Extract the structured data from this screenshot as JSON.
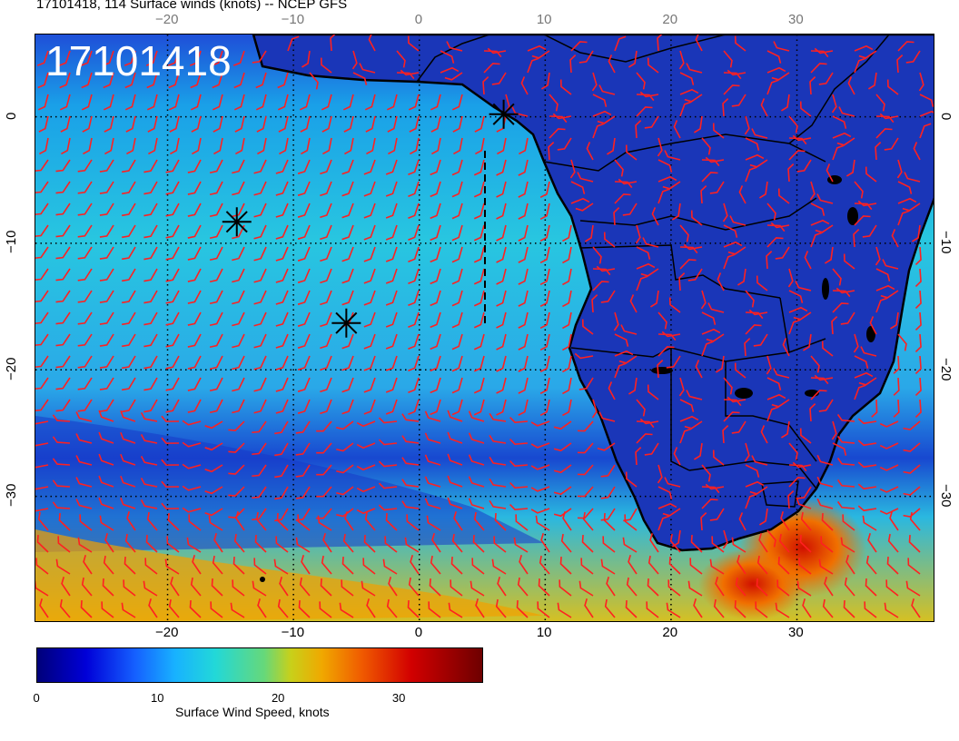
{
  "header": {
    "title": "17101418, 114 Surface winds (knots) -- NCEP GFS",
    "stamp": "17101418"
  },
  "axes": {
    "x_ticks": [
      "−20",
      "−10",
      "0",
      "10",
      "20",
      "30"
    ],
    "x_values": [
      -20,
      -10,
      0,
      10,
      20,
      30
    ],
    "y_ticks": [
      "0",
      "−10",
      "−20",
      "−30"
    ],
    "y_values": [
      0,
      -10,
      -20,
      -30
    ],
    "lon_range": [
      -30.5,
      41
    ],
    "lat_range": [
      -40,
      6.5
    ]
  },
  "storm_markers": [
    {
      "lon": 6.7,
      "lat": 0.2
    },
    {
      "lon": -14.5,
      "lat": -8.3
    },
    {
      "lon": -5.8,
      "lat": -16.3
    }
  ],
  "colorbar": {
    "ticks": [
      "0",
      "10",
      "20",
      "30"
    ],
    "tick_values": [
      0,
      10,
      20,
      30
    ],
    "range": [
      0,
      37
    ],
    "label": "Surface Wind Speed, knots",
    "colors": [
      "#00007a",
      "#0000d8",
      "#1560ff",
      "#18b2ff",
      "#22d8d8",
      "#66d87a",
      "#c8d01a",
      "#f0a800",
      "#f05a00",
      "#d20000",
      "#6e0000"
    ]
  },
  "colors": {
    "barb": "#ff2020",
    "coast": "#000000",
    "stamp": "#ffffff"
  }
}
